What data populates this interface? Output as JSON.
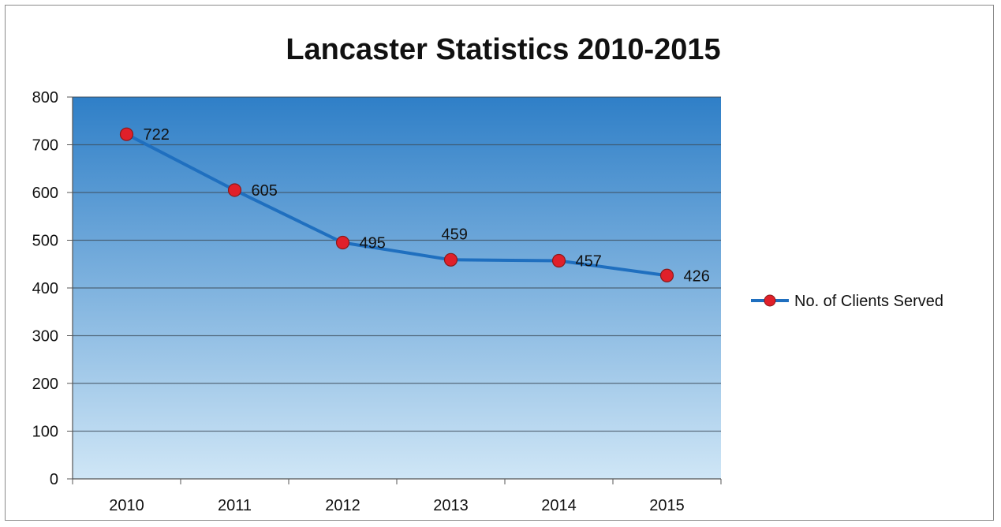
{
  "chart_data": {
    "type": "line",
    "title": "Lancaster Statistics 2010-2015",
    "xlabel": "",
    "ylabel": "",
    "categories": [
      "2010",
      "2011",
      "2012",
      "2013",
      "2014",
      "2015"
    ],
    "series": [
      {
        "name": "No. of Clients Served",
        "values": [
          722,
          605,
          495,
          459,
          457,
          426
        ],
        "data_labels": [
          "722",
          "605",
          "495",
          "459",
          "457",
          "426"
        ],
        "color": "#1f6fbf",
        "marker_color": "#e0202a"
      }
    ],
    "ylim": [
      0,
      800
    ],
    "yticks": [
      "0",
      "100",
      "200",
      "300",
      "400",
      "500",
      "600",
      "700",
      "800"
    ],
    "grid": true,
    "legend_position": "right",
    "plot_background": [
      "#2f7fc7",
      "#cfe6f6"
    ]
  }
}
